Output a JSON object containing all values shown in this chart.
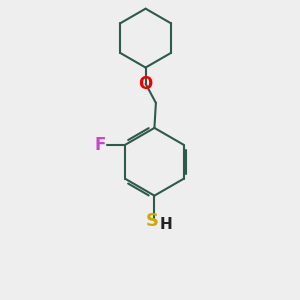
{
  "bg_color": "#eeeeee",
  "bond_color": "#2d5a4a",
  "bond_width": 1.5,
  "atom_colors": {
    "F": "#cc44cc",
    "O": "#ee0000",
    "S": "#ccaa00",
    "H": "#222222",
    "C": "#2d5a4a"
  },
  "fig_size": [
    3.0,
    3.0
  ],
  "dpi": 100
}
